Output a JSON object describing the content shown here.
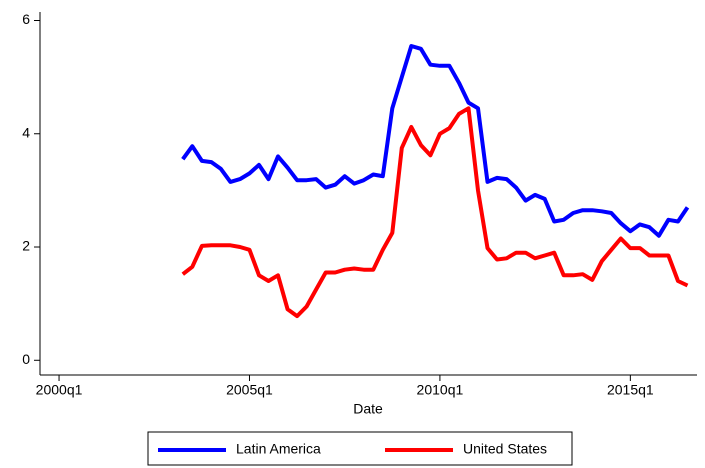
{
  "chart_data": {
    "type": "line",
    "x_label": "Date",
    "x": [
      "2003q2",
      "2003q3",
      "2003q4",
      "2004q1",
      "2004q2",
      "2004q3",
      "2004q4",
      "2005q1",
      "2005q2",
      "2005q3",
      "2005q4",
      "2006q1",
      "2006q2",
      "2006q3",
      "2006q4",
      "2007q1",
      "2007q2",
      "2007q3",
      "2007q4",
      "2008q1",
      "2008q2",
      "2008q3",
      "2008q4",
      "2009q1",
      "2009q2",
      "2009q3",
      "2009q4",
      "2010q1",
      "2010q2",
      "2010q3",
      "2010q4",
      "2011q1",
      "2011q2",
      "2011q3",
      "2011q4",
      "2012q1",
      "2012q2",
      "2012q3",
      "2012q4",
      "2013q1",
      "2013q2",
      "2013q3",
      "2013q4",
      "2014q1",
      "2014q2",
      "2014q3",
      "2014q4",
      "2015q1",
      "2015q2",
      "2015q3",
      "2015q4",
      "2016q1",
      "2016q2",
      "2016q3"
    ],
    "series": [
      {
        "name": "Latin America",
        "color": "#0000ff",
        "values": [
          3.55,
          3.78,
          3.52,
          3.5,
          3.38,
          3.15,
          3.2,
          3.3,
          3.45,
          3.2,
          3.6,
          3.4,
          3.18,
          3.18,
          3.2,
          3.05,
          3.1,
          3.25,
          3.12,
          3.18,
          3.28,
          3.25,
          4.45,
          5.0,
          5.55,
          5.5,
          5.22,
          5.2,
          5.2,
          4.9,
          4.55,
          4.45,
          3.15,
          3.22,
          3.2,
          3.05,
          2.82,
          2.92,
          2.85,
          2.45,
          2.48,
          2.6,
          2.65,
          2.65,
          2.63,
          2.6,
          2.42,
          2.28,
          2.4,
          2.35,
          2.2,
          2.48,
          2.45,
          2.7
        ]
      },
      {
        "name": "United States",
        "color": "#ff0000",
        "values": [
          1.52,
          1.65,
          2.02,
          2.03,
          2.03,
          2.03,
          2.0,
          1.95,
          1.5,
          1.4,
          1.5,
          0.9,
          0.78,
          0.95,
          1.25,
          1.55,
          1.55,
          1.6,
          1.62,
          1.6,
          1.6,
          1.95,
          2.25,
          3.75,
          4.12,
          3.8,
          3.62,
          4.0,
          4.1,
          4.35,
          4.45,
          3.0,
          1.98,
          1.78,
          1.8,
          1.9,
          1.9,
          1.8,
          1.85,
          1.9,
          1.5,
          1.5,
          1.52,
          1.42,
          1.75,
          1.95,
          2.15,
          1.98,
          1.98,
          1.85,
          1.85,
          1.85,
          1.4,
          1.32
        ]
      }
    ],
    "xlim": [
      "1999q3",
      "2016q4"
    ],
    "xticks": [
      "2000q1",
      "2005q1",
      "2010q1",
      "2015q1"
    ],
    "ylim": [
      -0.26,
      6.15
    ],
    "yticks": [
      0,
      2,
      4,
      6
    ]
  }
}
